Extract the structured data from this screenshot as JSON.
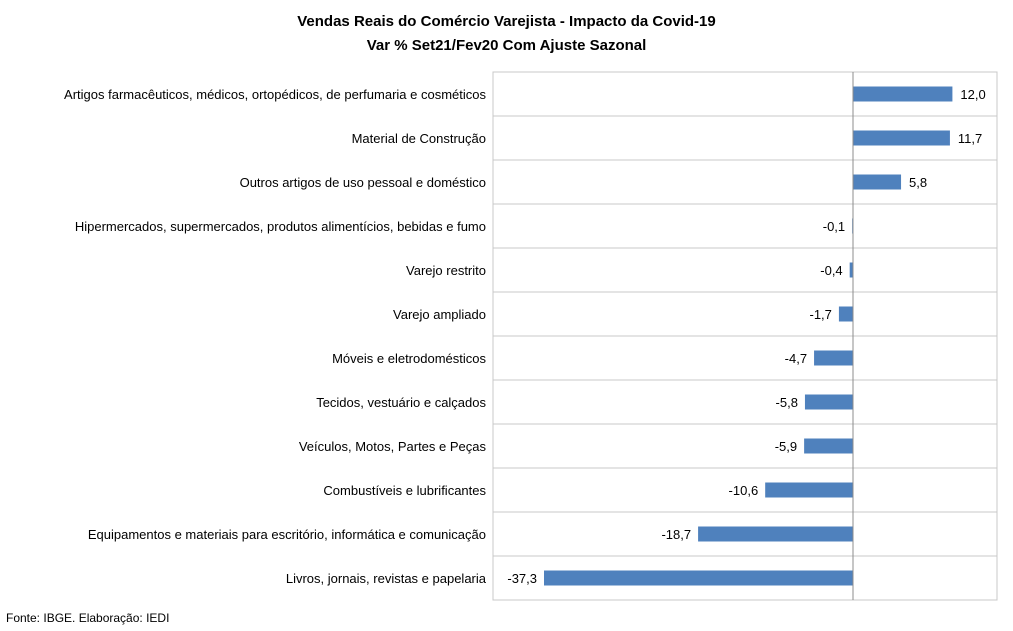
{
  "chart_data": {
    "type": "bar",
    "orientation": "horizontal",
    "title": "Vendas Reais do Comércio Varejista - Impacto da Covid-19",
    "subtitle": "Var % Set21/Fev20 Com Ajuste Sazonal",
    "categories": [
      "Artigos farmacêuticos, médicos, ortopédicos, de perfumaria e cosméticos",
      "Material de Construção",
      "Outros artigos de uso pessoal e doméstico",
      "Hipermercados, supermercados, produtos alimentícios, bebidas e fumo",
      "Varejo restrito",
      "Varejo ampliado",
      "Móveis e eletrodomésticos",
      "Tecidos, vestuário e calçados",
      "Veículos, Motos, Partes e Peças",
      "Combustíveis e lubrificantes",
      "Equipamentos e materiais para escritório, informática e comunicação",
      "Livros, jornais, revistas e papelaria"
    ],
    "values": [
      12.0,
      11.7,
      5.8,
      -0.1,
      -0.4,
      -1.7,
      -4.7,
      -5.8,
      -5.9,
      -10.6,
      -18.7,
      -37.3
    ],
    "value_labels": [
      "12,0",
      "11,7",
      "5,8",
      "-0,1",
      "-0,4",
      "-1,7",
      "-4,7",
      "-5,8",
      "-5,9",
      "-10,6",
      "-18,7",
      "-37,3"
    ],
    "xlim": [
      -37.3,
      17.5
    ],
    "bar_color": "#4f81bd",
    "grid": "horizontal separators",
    "legend": "none"
  },
  "source": "Fonte: IBGE. Elaboração: IEDI"
}
